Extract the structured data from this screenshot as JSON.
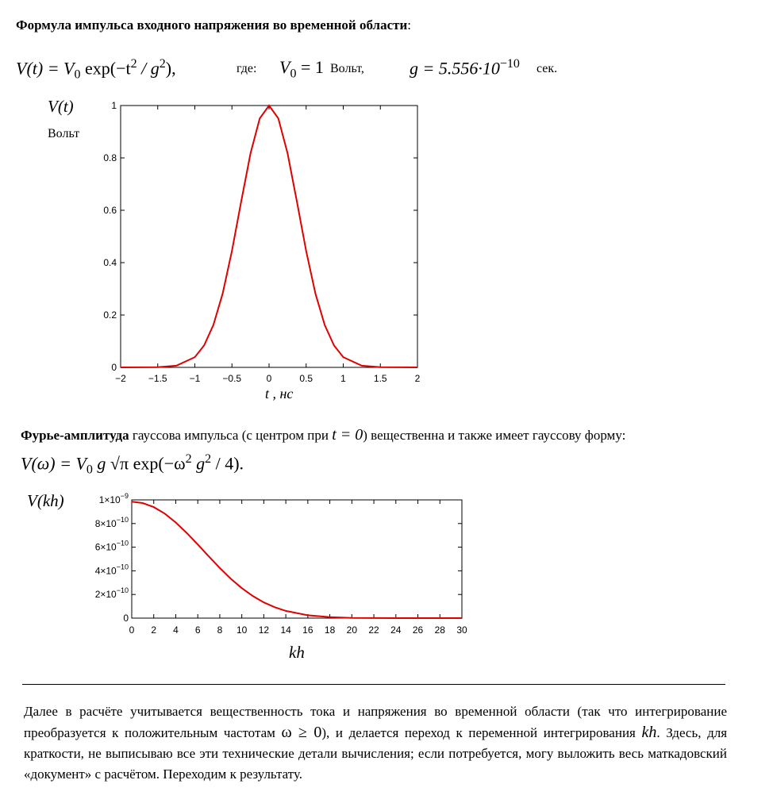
{
  "heading1": {
    "bold": "Формула импульса входного напряжения во временной области",
    "tail": ":"
  },
  "formula1": {
    "lhs": "V(t) = V",
    "sub0": "0",
    "expr": " exp(−t",
    "sup2": "2",
    "expr2": " / g",
    "sup2b": "2",
    "end": "),",
    "where": "где:",
    "v0": "V",
    "v0sub": "0",
    "v0val": " = 1",
    "v0unit": "Вольт,",
    "g": "g = 5.556·10",
    "gexp": "−10",
    "gunit": "сек."
  },
  "chart1_labels": {
    "ylabel": "V(t)",
    "yunit": "Вольт",
    "xlabel": "t , нс"
  },
  "heading2": {
    "bold": "Фурье-амплитуда",
    "text": " гауссова импульса (с центром при ",
    "cond": "t = 0",
    "tail": ") вещественна и также имеет гауссову форму:"
  },
  "formula2": {
    "lhs": "V(ω) = V",
    "sub0": "0",
    "g": " g ",
    "sqrt": "√π",
    "exp": " exp(−ω",
    "sup2": "2",
    "g2": " g",
    "sup2b": "2",
    "end": " / 4)."
  },
  "chart2_labels": {
    "ylabel": "V(kh)",
    "xlabel": "kh"
  },
  "paragraph": {
    "p1": "Далее в расчёте учитывается вещественность тока и напряжения во временной области (так что интегрирование преобразуется к положительным частотам ",
    "cond": "ω ≥ 0",
    "p2": "),  и  делается переход к переменной интегрирования ",
    "var": "kh",
    "p3": ". Здесь, для краткости, не выписываю все эти технические детали вычисления; если потребуется, могу выложить весь маткадовский «документ» с расчётом.   Переходим к результату."
  },
  "chart_data": [
    {
      "type": "line",
      "title": "",
      "xlabel": "t , нс",
      "ylabel": "V(t)",
      "xlim": [
        -2,
        2
      ],
      "ylim": [
        0,
        1
      ],
      "x_ticks": [
        "−2",
        "−1.5",
        "−1",
        "−0.5",
        "0",
        "0.5",
        "1",
        "1.5",
        "2"
      ],
      "y_ticks": [
        "0",
        "0.2",
        "0.4",
        "0.6",
        "0.8",
        "1"
      ],
      "series": [
        {
          "color": "#e00000",
          "x": [
            -2,
            -1.5,
            -1.25,
            -1,
            -0.875,
            -0.75,
            -0.625,
            -0.5,
            -0.375,
            -0.25,
            -0.125,
            0,
            0.125,
            0.25,
            0.375,
            0.5,
            0.625,
            0.75,
            0.875,
            1,
            1.25,
            1.5,
            2
          ],
          "y": [
            0.0,
            0.0007,
            0.0063,
            0.039,
            0.084,
            0.162,
            0.282,
            0.445,
            0.634,
            0.817,
            0.951,
            1.0,
            0.951,
            0.817,
            0.634,
            0.445,
            0.282,
            0.162,
            0.084,
            0.039,
            0.0063,
            0.0007,
            0.0
          ]
        }
      ]
    },
    {
      "type": "line",
      "title": "",
      "xlabel": "kh",
      "ylabel": "V(kh)",
      "xlim": [
        0,
        30
      ],
      "ylim": [
        0,
        1e-09
      ],
      "x_ticks": [
        "0",
        "2",
        "4",
        "6",
        "8",
        "10",
        "12",
        "14",
        "16",
        "18",
        "20",
        "22",
        "24",
        "26",
        "28",
        "30"
      ],
      "y_ticks": [
        {
          "mant": "0",
          "exp": ""
        },
        {
          "mant": "2×10",
          "exp": "−10"
        },
        {
          "mant": "4×10",
          "exp": "−10"
        },
        {
          "mant": "6×10",
          "exp": "−10"
        },
        {
          "mant": "8×10",
          "exp": "−10"
        },
        {
          "mant": "1×10",
          "exp": "−9"
        }
      ],
      "series": [
        {
          "color": "#e00000",
          "x": [
            0,
            1,
            2,
            3,
            4,
            5,
            6,
            7,
            8,
            9,
            10,
            11,
            12,
            13,
            14,
            16,
            18,
            20,
            24,
            30
          ],
          "y": [
            9.85e-10,
            9.73e-10,
            9.39e-10,
            8.84e-10,
            8.09e-10,
            7.2e-10,
            6.23e-10,
            5.22e-10,
            4.24e-10,
            3.33e-10,
            2.54e-10,
            1.87e-10,
            1.33e-10,
            9.2e-11,
            6.1e-11,
            2.4e-11,
            8e-12,
            2e-12,
            0.0,
            0.0
          ]
        }
      ]
    }
  ]
}
